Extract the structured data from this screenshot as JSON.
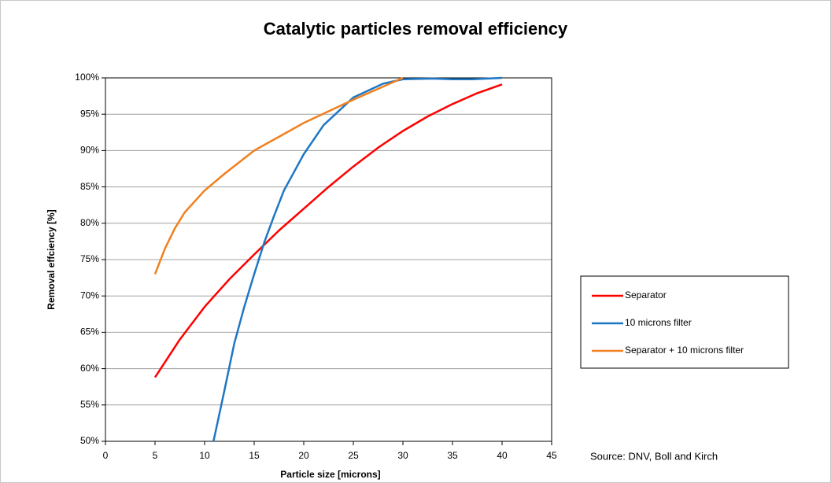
{
  "chart_data": {
    "type": "line",
    "title": "Catalytic particles removal efficiency",
    "x_label": "Particle size [microns]",
    "y_label": "Removal effciency [%]",
    "annotation": "Source: DNV,  Boll  and Kirch",
    "xlim": [
      0,
      45
    ],
    "xticks": [
      0,
      5,
      10,
      15,
      20,
      25,
      30,
      35,
      40,
      45
    ],
    "ylim": [
      50,
      100
    ],
    "yticks": [
      {
        "value": 50,
        "label": "50%"
      },
      {
        "value": 55,
        "label": "55%"
      },
      {
        "value": 60,
        "label": "60%"
      },
      {
        "value": 65,
        "label": "65%"
      },
      {
        "value": 70,
        "label": "70%"
      },
      {
        "value": 75,
        "label": "75%"
      },
      {
        "value": 80,
        "label": "80%"
      },
      {
        "value": 85,
        "label": "85%"
      },
      {
        "value": 90,
        "label": "90%"
      },
      {
        "value": 95,
        "label": "95%"
      },
      {
        "value": 100,
        "label": "100%"
      }
    ],
    "grid": true,
    "legend": "right",
    "series": [
      {
        "name": "Separator",
        "color": "#ff0000",
        "x": [
          5,
          7.5,
          10,
          12.5,
          15,
          17.5,
          20,
          22.5,
          25,
          27.5,
          30,
          32.5,
          35,
          37.5,
          40
        ],
        "values": [
          58.8,
          64,
          68.5,
          72.3,
          75.7,
          79,
          82,
          85,
          87.8,
          90.4,
          92.7,
          94.7,
          96.4,
          97.9,
          99.1
        ]
      },
      {
        "name": "10 microns filter",
        "color": "#1f77c4",
        "x": [
          10.9,
          12,
          13,
          14,
          15,
          16,
          17,
          18,
          20,
          22,
          25,
          28,
          30,
          33,
          35,
          37,
          40
        ],
        "values": [
          50,
          57,
          63.5,
          68.5,
          73,
          77.3,
          81,
          84.5,
          89.5,
          93.5,
          97.3,
          99.2,
          99.8,
          99.9,
          99.8,
          99.8,
          100
        ]
      },
      {
        "name": "Separator + 10 microns filter",
        "color": "#f08020",
        "x": [
          5,
          6,
          7,
          8,
          10,
          12,
          15,
          20,
          25,
          28,
          30
        ],
        "values": [
          73,
          76.5,
          79.3,
          81.5,
          84.5,
          86.8,
          90,
          93.8,
          97,
          98.8,
          100
        ]
      }
    ]
  }
}
